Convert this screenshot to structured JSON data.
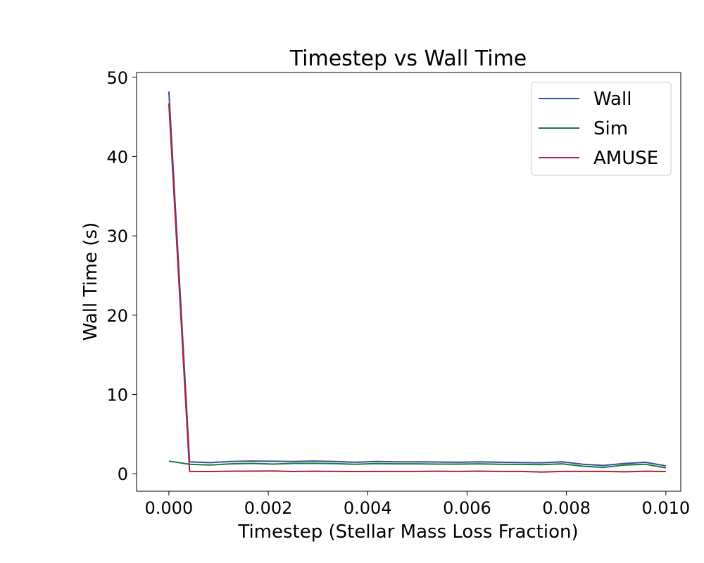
{
  "chart_data": {
    "type": "line",
    "title": "Timestep vs Wall Time",
    "xlabel": "Timestep (Stellar Mass Loss Fraction)",
    "ylabel": "Wall Time (s)",
    "xlim": [
      -0.00065,
      0.0103
    ],
    "ylim": [
      -2.2,
      50.6
    ],
    "xticks": [
      0.0,
      0.002,
      0.004,
      0.006,
      0.008,
      0.01
    ],
    "xtick_labels": [
      "0.000",
      "0.002",
      "0.004",
      "0.006",
      "0.008",
      "0.010"
    ],
    "yticks": [
      0,
      10,
      20,
      30,
      40,
      50
    ],
    "ytick_labels": [
      "0",
      "10",
      "20",
      "30",
      "40",
      "50"
    ],
    "grid": false,
    "legend": "top-right",
    "x": [
      0.0,
      0.000417,
      0.000833,
      0.00125,
      0.001667,
      0.002083,
      0.0025,
      0.002917,
      0.003333,
      0.00375,
      0.004167,
      0.004583,
      0.005,
      0.005417,
      0.005833,
      0.00625,
      0.006667,
      0.007083,
      0.0075,
      0.007917,
      0.008333,
      0.00875,
      0.009167,
      0.009583,
      0.01
    ],
    "series": [
      {
        "name": "Wall",
        "color": "#3a4e9a",
        "values": [
          48.2,
          1.5,
          1.4,
          1.55,
          1.6,
          1.58,
          1.55,
          1.6,
          1.55,
          1.45,
          1.55,
          1.5,
          1.5,
          1.48,
          1.45,
          1.5,
          1.45,
          1.42,
          1.38,
          1.5,
          1.2,
          1.05,
          1.3,
          1.45,
          1.0
        ]
      },
      {
        "name": "Sim",
        "color": "#1b7a3c",
        "values": [
          1.6,
          1.2,
          1.1,
          1.25,
          1.3,
          1.22,
          1.3,
          1.32,
          1.28,
          1.2,
          1.28,
          1.25,
          1.25,
          1.22,
          1.22,
          1.25,
          1.2,
          1.18,
          1.15,
          1.25,
          0.95,
          0.8,
          1.1,
          1.2,
          0.75
        ]
      },
      {
        "name": "AMUSE",
        "color": "#b0203f",
        "values": [
          46.7,
          0.3,
          0.28,
          0.32,
          0.33,
          0.35,
          0.28,
          0.32,
          0.3,
          0.28,
          0.3,
          0.3,
          0.3,
          0.32,
          0.3,
          0.33,
          0.3,
          0.3,
          0.22,
          0.3,
          0.3,
          0.3,
          0.25,
          0.32,
          0.28
        ]
      }
    ]
  }
}
